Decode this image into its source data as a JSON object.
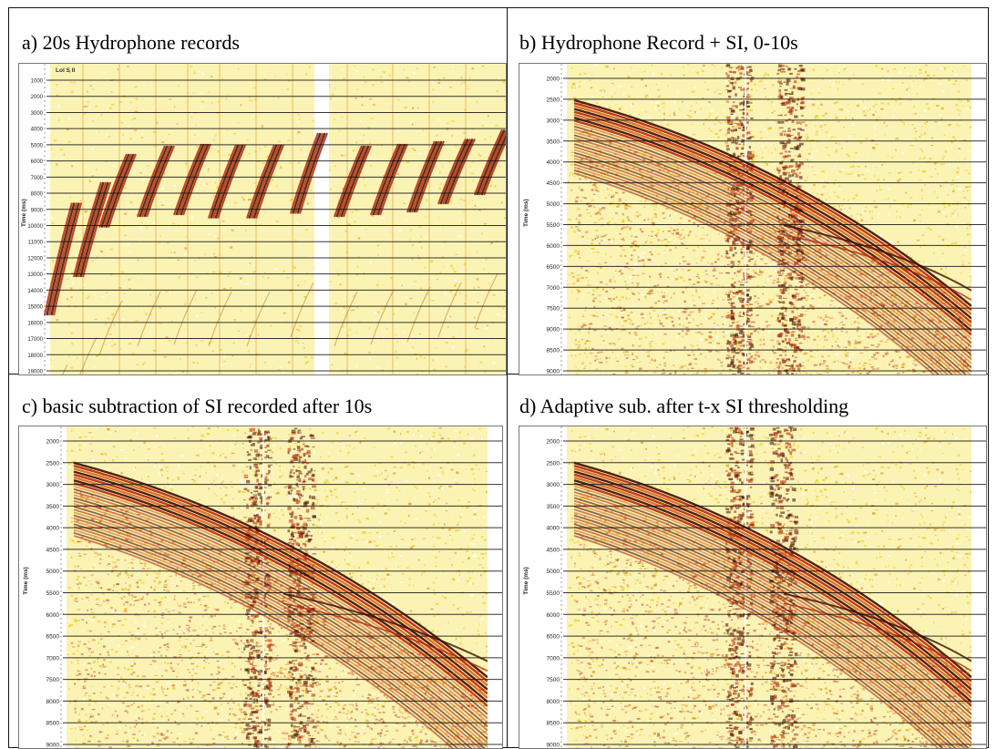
{
  "panels": [
    {
      "caption": "a) 20s Hydrophone records",
      "panel_label": "LoI S II",
      "y_axis_label": "Time (ms)",
      "y_ticks": [
        "1000",
        "2000",
        "3000",
        "4000",
        "5000",
        "6000",
        "7000",
        "8000",
        "9000",
        "10000",
        "11000",
        "12000",
        "13000",
        "14000",
        "15000",
        "16000",
        "17000",
        "18000",
        "19000"
      ]
    },
    {
      "caption": "b) Hydrophone Record + SI, 0-10s",
      "y_axis_label": "Time (ms)",
      "y_ticks": [
        "2000",
        "2500",
        "3000",
        "3500",
        "4000",
        "4500",
        "5000",
        "5500",
        "6000",
        "6500",
        "7000",
        "7500",
        "8000",
        "8500",
        "9000"
      ]
    },
    {
      "caption": "c) basic subtraction of SI recorded after 10s",
      "y_axis_label": "Time (ms)",
      "y_ticks": [
        "2000",
        "2500",
        "3000",
        "3500",
        "4000",
        "4500",
        "5000",
        "5500",
        "6000",
        "6500",
        "7000",
        "7500",
        "8000",
        "8500",
        "9000"
      ]
    },
    {
      "caption": "d) Adaptive sub. after t-x SI thresholding",
      "y_axis_label": "Time (ms)",
      "y_ticks": [
        "2000",
        "2500",
        "3000",
        "3500",
        "4000",
        "4500",
        "5000",
        "5500",
        "6000",
        "6500",
        "7000",
        "7500",
        "8000",
        "8500",
        "9000"
      ]
    }
  ],
  "colors": {
    "background": "#fbf3b4",
    "signal_dark": "#3a0a00",
    "signal_red": "#b8250a",
    "signal_orange": "#d9661f",
    "noise_yellow": "#f3d33a",
    "grid_line": "#111111"
  }
}
